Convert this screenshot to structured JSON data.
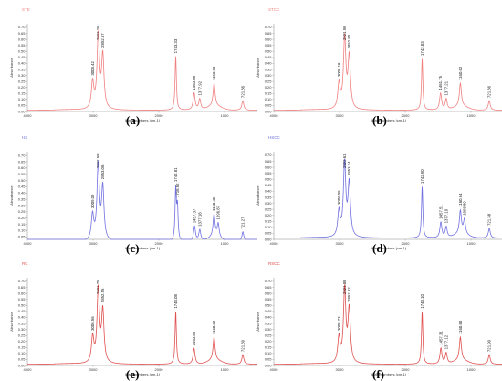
{
  "chart_data": [
    {
      "type": "line",
      "panel_label": "(a)",
      "title": "STE",
      "color": "#f08080",
      "xlabel": "Wavenumbers (cm-1)",
      "ylabel": "Absorbance",
      "x_ticks": [
        "4000",
        "3000",
        "2000",
        "1000"
      ],
      "y_ticks": [
        "0.70",
        "0.65",
        "0.60",
        "0.55",
        "0.50",
        "0.45",
        "0.40",
        "0.35",
        "0.30",
        "0.25",
        "0.20",
        "0.15",
        "0.10",
        "0.05",
        "0.00"
      ],
      "xlim": [
        4000,
        500
      ],
      "ylim": [
        0,
        0.73
      ],
      "peak_labels": [
        "3008.42",
        "2922.26",
        "2852.67",
        "1743.33",
        "1463.08",
        "1377.92",
        "1158.93",
        "721.86"
      ],
      "peaks": [
        [
          3008,
          0.22
        ],
        [
          2922,
          0.61
        ],
        [
          2853,
          0.44
        ],
        [
          1743,
          0.45
        ],
        [
          1463,
          0.14
        ],
        [
          1378,
          0.09
        ],
        [
          1159,
          0.19
        ],
        [
          722,
          0.08
        ]
      ]
    },
    {
      "type": "line",
      "panel_label": "(b)",
      "title": "STCC",
      "color": "#f08080",
      "xlabel": "Wavenumbers (cm-1)",
      "ylabel": "Absorbance",
      "x_ticks": [
        "4000",
        "3000",
        "2000",
        "1000"
      ],
      "y_ticks": [
        "0.70",
        "0.65",
        "0.60",
        "0.55",
        "0.50",
        "0.45",
        "0.40",
        "0.35",
        "0.30",
        "0.25",
        "0.20",
        "0.15",
        "0.10",
        "0.05",
        "0.00"
      ],
      "xlim": [
        4000,
        500
      ],
      "ylim": [
        0,
        0.73
      ],
      "peak_labels": [
        "3008.18",
        "2921.96",
        "2852.80",
        "1742.83",
        "1461.75",
        "1377.21",
        "1160.62",
        "721.86"
      ],
      "peaks": [
        [
          3008,
          0.21
        ],
        [
          2922,
          0.59
        ],
        [
          2853,
          0.43
        ],
        [
          1743,
          0.43
        ],
        [
          1462,
          0.14
        ],
        [
          1377,
          0.09
        ],
        [
          1161,
          0.19
        ],
        [
          722,
          0.08
        ]
      ]
    },
    {
      "type": "line",
      "panel_label": "(c)",
      "title": "HS",
      "color": "#7070e0",
      "xlabel": "Wavenumbers (cm-1)",
      "ylabel": "Absorbance",
      "x_ticks": [
        "4000",
        "3000",
        "2000",
        "1000"
      ],
      "y_ticks": [
        "0.70",
        "0.65",
        "0.60",
        "0.55",
        "0.50",
        "0.45",
        "0.40",
        "0.35",
        "0.30",
        "0.25",
        "0.20",
        "0.15",
        "0.10",
        "0.05"
      ],
      "xlim": [
        4000,
        500
      ],
      "ylim": [
        0.03,
        0.73
      ],
      "peak_labels": [
        "3009.09",
        "2922.58",
        "2853.06",
        "1742.81",
        "1716.52",
        "1457.37",
        "1377.18",
        "1160.45",
        "1096.87",
        "721.27"
      ],
      "peaks": [
        [
          3009,
          0.2
        ],
        [
          2923,
          0.6
        ],
        [
          2853,
          0.42
        ],
        [
          1743,
          0.41
        ],
        [
          1717,
          0.26
        ],
        [
          1457,
          0.12
        ],
        [
          1377,
          0.09
        ],
        [
          1160,
          0.18
        ],
        [
          1097,
          0.11
        ],
        [
          721,
          0.08
        ]
      ]
    },
    {
      "type": "line",
      "panel_label": "(d)",
      "title": "HSCC",
      "color": "#7070e0",
      "xlabel": "Wavenumbers (cm-1)",
      "ylabel": "Absorbance",
      "x_ticks": [
        "4000",
        "3000",
        "2000",
        "1000"
      ],
      "y_ticks": [
        "0.70",
        "0.65",
        "0.60",
        "0.55",
        "0.50",
        "0.45",
        "0.40",
        "0.35",
        "0.30",
        "0.25",
        "0.20",
        "0.15",
        "0.10",
        "0.05",
        "0.00"
      ],
      "xlim": [
        4000,
        500
      ],
      "ylim": [
        0,
        0.73
      ],
      "peak_labels": [
        "3009.09",
        "2922.61",
        "2853.14",
        "1742.90",
        "1457.51",
        "1377.19",
        "1160.64",
        "1098.89",
        "721.38"
      ],
      "peaks": [
        [
          3009,
          0.21
        ],
        [
          2923,
          0.61
        ],
        [
          2853,
          0.44
        ],
        [
          1743,
          0.43
        ],
        [
          1458,
          0.13
        ],
        [
          1377,
          0.09
        ],
        [
          1161,
          0.19
        ],
        [
          1099,
          0.12
        ],
        [
          721,
          0.08
        ]
      ]
    },
    {
      "type": "line",
      "panel_label": "(e)",
      "title": "RC",
      "color": "#e05050",
      "xlabel": "Wavenumbers (cm-1)",
      "ylabel": "Absorbance",
      "x_ticks": [
        "4000",
        "3000",
        "2000",
        "1000"
      ],
      "y_ticks": [
        "0.70",
        "0.65",
        "0.60",
        "0.55",
        "0.50",
        "0.45",
        "0.40",
        "0.35",
        "0.30",
        "0.25",
        "0.20",
        "0.15",
        "0.10",
        "0.05",
        "0.00"
      ],
      "xlim": [
        4000,
        500
      ],
      "ylim": [
        0,
        0.73
      ],
      "peak_labels": [
        "3006.56",
        "2921.75",
        "2852.55",
        "1743.08",
        "1463.80",
        "1160.32",
        "721.89"
      ],
      "peaks": [
        [
          3007,
          0.21
        ],
        [
          2922,
          0.61
        ],
        [
          2853,
          0.43
        ],
        [
          1743,
          0.44
        ],
        [
          1464,
          0.13
        ],
        [
          1160,
          0.19
        ],
        [
          722,
          0.08
        ]
      ]
    },
    {
      "type": "line",
      "panel_label": "(f)",
      "title": "RSCC",
      "color": "#e05050",
      "xlabel": "Wavenumbers (cm-1)",
      "ylabel": "Absorbance",
      "x_ticks": [
        "4000",
        "3000",
        "2000",
        "1000"
      ],
      "y_ticks": [
        "0.70",
        "0.65",
        "0.60",
        "0.55",
        "0.50",
        "0.45",
        "0.40",
        "0.35",
        "0.30",
        "0.25",
        "0.20",
        "0.15",
        "0.10",
        "0.05",
        "0.00"
      ],
      "xlim": [
        4000,
        500
      ],
      "ylim": [
        0,
        0.73
      ],
      "peak_labels": [
        "3008.73",
        "2921.88",
        "2852.92",
        "1743.10",
        "1457.31",
        "1377.12",
        "1160.80",
        "721.90"
      ],
      "peaks": [
        [
          3009,
          0.21
        ],
        [
          2922,
          0.61
        ],
        [
          2853,
          0.44
        ],
        [
          1743,
          0.44
        ],
        [
          1457,
          0.13
        ],
        [
          1377,
          0.09
        ],
        [
          1161,
          0.19
        ],
        [
          722,
          0.08
        ]
      ]
    }
  ]
}
